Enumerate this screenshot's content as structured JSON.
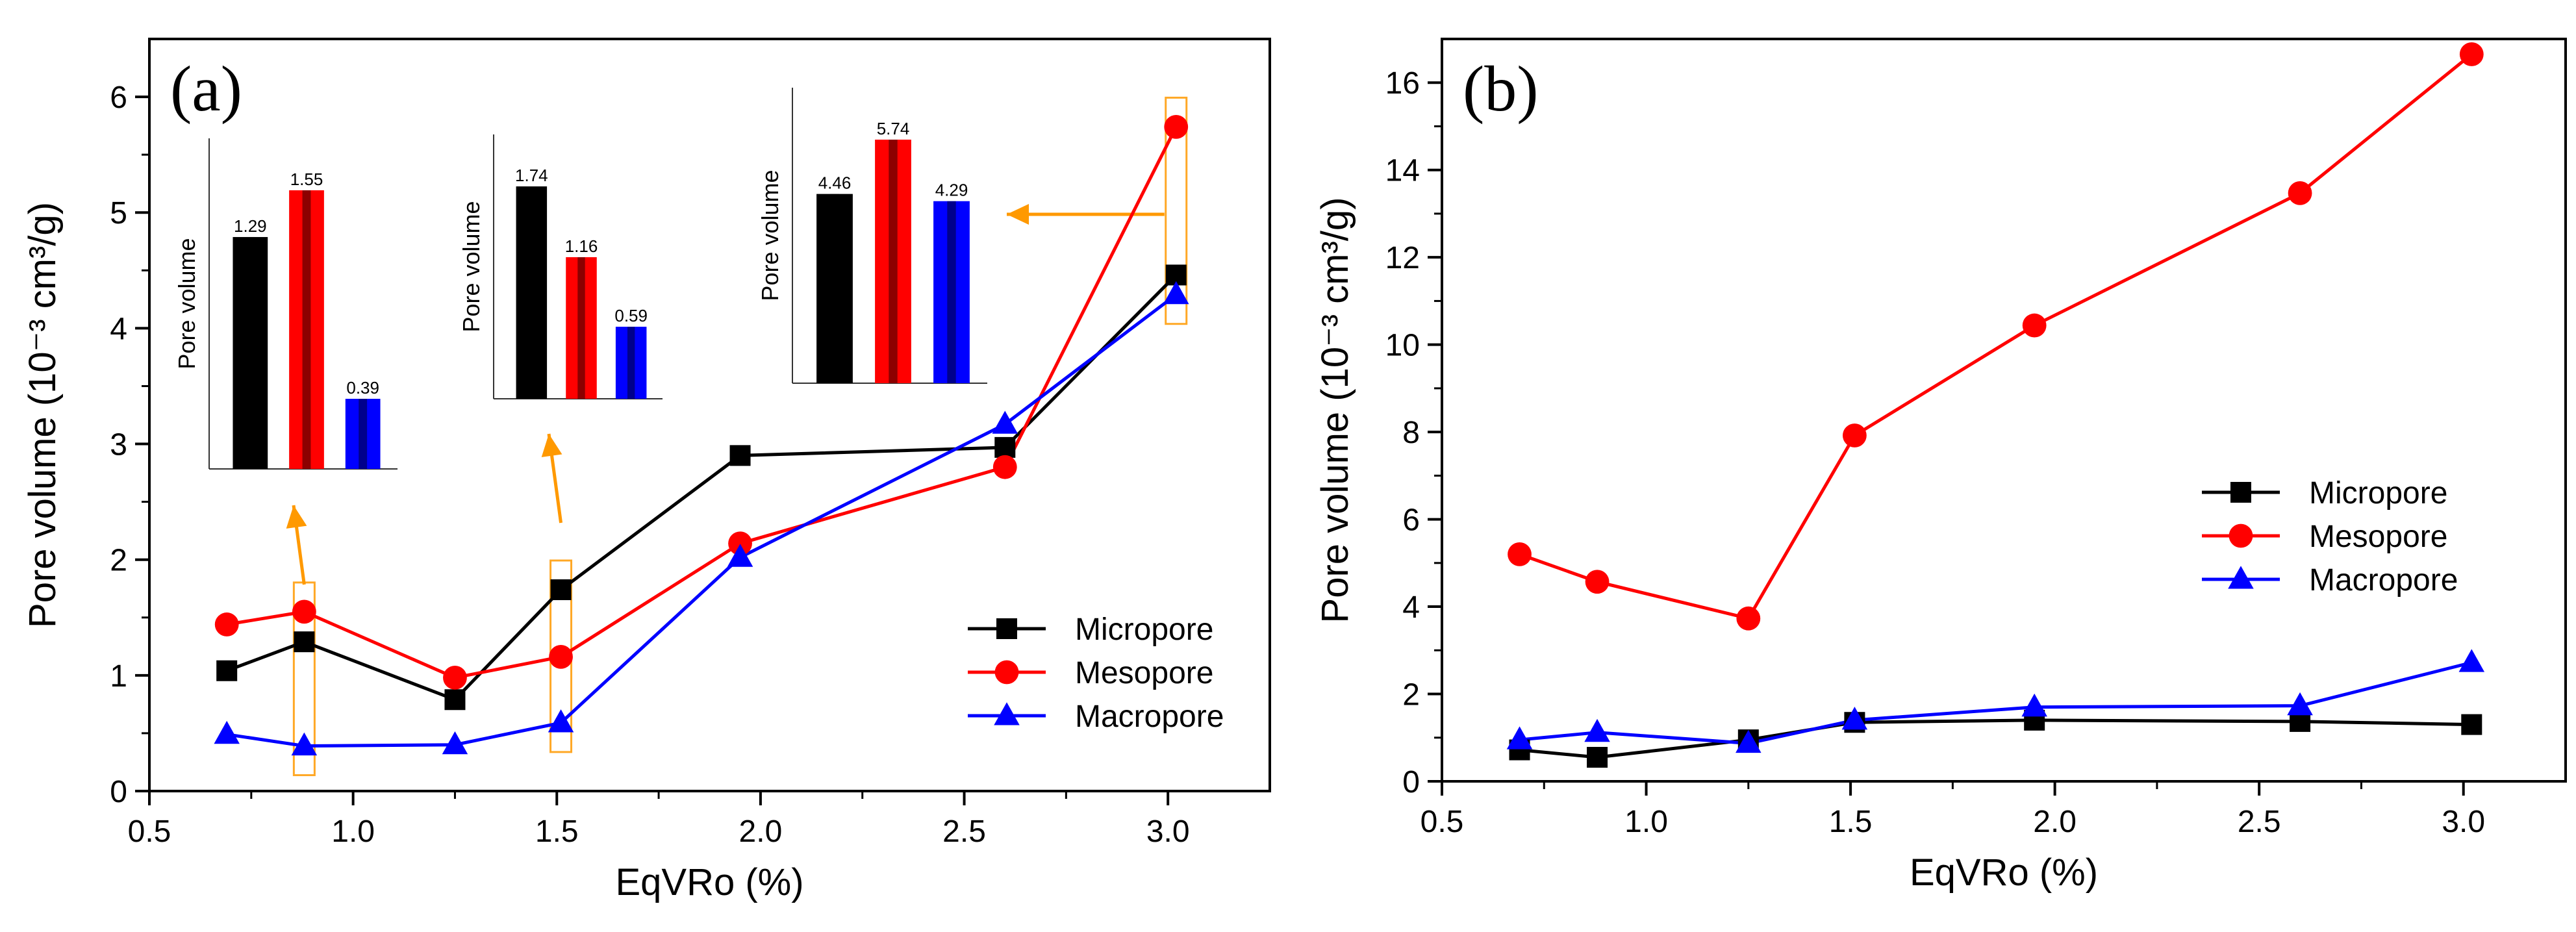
{
  "chart_data": [
    {
      "panel_label": "(a)",
      "type": "line",
      "xlabel": "EqVRo (%)",
      "ylabel": "Pore volume (10⁻³ cm³/g)",
      "xlim": [
        0.5,
        3.25
      ],
      "ylim": [
        0,
        6.5
      ],
      "xticks": [
        0.5,
        1.0,
        1.5,
        2.0,
        2.5,
        3.0
      ],
      "xtick_labels": [
        "0.5",
        "1.0",
        "1.5",
        "2.0",
        "2.5",
        "3.0"
      ],
      "yticks": [
        0,
        1,
        2,
        3,
        4,
        5,
        6
      ],
      "ytick_labels": [
        "0",
        "1",
        "2",
        "3",
        "4",
        "5",
        "6"
      ],
      "legend_position": "bottom-right",
      "x": [
        0.69,
        0.88,
        1.25,
        1.51,
        1.95,
        2.6,
        3.02
      ],
      "series": [
        {
          "name": "Micropore",
          "color": "#000000",
          "marker": "square",
          "values": [
            1.04,
            1.29,
            0.79,
            1.74,
            2.9,
            2.97,
            4.46
          ]
        },
        {
          "name": "Mesopore",
          "color": "#ff0000",
          "marker": "circle",
          "values": [
            1.44,
            1.55,
            0.98,
            1.16,
            2.14,
            2.8,
            5.74
          ]
        },
        {
          "name": "Macropore",
          "color": "#0000ff",
          "marker": "triangle",
          "values": [
            0.49,
            0.39,
            0.4,
            0.59,
            2.02,
            3.17,
            4.29
          ]
        }
      ],
      "insets": [
        {
          "ylabel": "Pore volume",
          "values": [
            1.29,
            1.55,
            0.39
          ],
          "value_labels": [
            "1.29",
            "1.55",
            "0.39"
          ],
          "highlight_x": 0.88
        },
        {
          "ylabel": "Pore volume",
          "values": [
            1.74,
            1.16,
            0.59
          ],
          "value_labels": [
            "1.74",
            "1.16",
            "0.59"
          ],
          "highlight_x": 1.51
        },
        {
          "ylabel": "Pore volume",
          "values": [
            4.46,
            5.74,
            4.29
          ],
          "value_labels": [
            "4.46",
            "5.74",
            "4.29"
          ],
          "highlight_x": 3.02
        }
      ],
      "inset_bar_colors": [
        "#000000",
        "#ff0000",
        "#0000ff"
      ],
      "annotation_color": "#ff9900"
    },
    {
      "panel_label": "(b)",
      "type": "line",
      "xlabel": "EqVRo (%)",
      "ylabel": "Pore volume (10⁻³ cm³/g)",
      "xlim": [
        0.5,
        3.25
      ],
      "ylim": [
        0,
        17
      ],
      "xticks": [
        0.5,
        1.0,
        1.5,
        2.0,
        2.5,
        3.0
      ],
      "xtick_labels": [
        "0.5",
        "1.0",
        "1.5",
        "2.0",
        "2.5",
        "3.0"
      ],
      "yticks": [
        0,
        2,
        4,
        6,
        8,
        10,
        12,
        14,
        16
      ],
      "ytick_labels": [
        "0",
        "2",
        "4",
        "6",
        "8",
        "10",
        "12",
        "14",
        "16"
      ],
      "legend_position": "middle-right",
      "x": [
        0.69,
        0.88,
        1.25,
        1.51,
        1.95,
        2.6,
        3.02
      ],
      "series": [
        {
          "name": "Micropore",
          "color": "#000000",
          "marker": "square",
          "values": [
            0.72,
            0.55,
            0.95,
            1.35,
            1.4,
            1.37,
            1.3
          ]
        },
        {
          "name": "Mesopore",
          "color": "#ff0000",
          "marker": "circle",
          "values": [
            5.2,
            4.57,
            3.73,
            7.92,
            10.44,
            13.47,
            16.65
          ]
        },
        {
          "name": "Macropore",
          "color": "#0000ff",
          "marker": "triangle",
          "values": [
            0.95,
            1.12,
            0.87,
            1.4,
            1.7,
            1.73,
            2.72
          ]
        }
      ]
    }
  ]
}
